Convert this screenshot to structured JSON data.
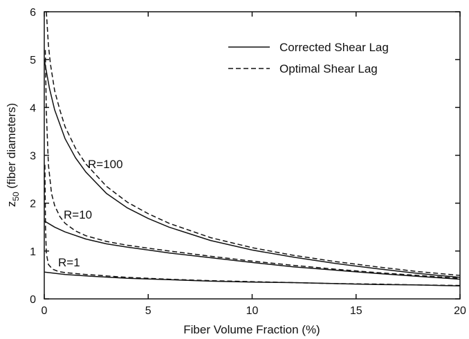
{
  "chart_data": {
    "type": "line",
    "xlabel": "Fiber Volume Fraction (%)",
    "ylabel_main": "z",
    "ylabel_sub": "50",
    "ylabel_rest": " (fiber diameters)",
    "xlim": [
      0,
      20
    ],
    "ylim": [
      0,
      6
    ],
    "xticks": [
      0,
      5,
      10,
      15,
      20
    ],
    "yticks": [
      0,
      1,
      2,
      3,
      4,
      5,
      6
    ],
    "grid": false,
    "legend_position": "top-right",
    "legend": [
      {
        "label": "Corrected Shear Lag",
        "style": "solid"
      },
      {
        "label": "Optimal Shear Lag",
        "style": "dashed"
      }
    ],
    "annotations": [
      "R=100",
      "R=10",
      "R=1"
    ],
    "series": [
      {
        "group": "R=100",
        "style": "solid",
        "x": [
          0,
          0.25,
          0.5,
          1,
          1.5,
          2,
          3,
          4,
          5,
          6,
          8,
          10,
          12,
          14,
          16,
          18,
          20
        ],
        "y": [
          5.0,
          4.4,
          3.95,
          3.35,
          2.95,
          2.65,
          2.2,
          1.9,
          1.68,
          1.5,
          1.22,
          1.02,
          0.87,
          0.74,
          0.63,
          0.53,
          0.45
        ]
      },
      {
        "group": "R=100",
        "style": "dashed",
        "x": [
          0.1,
          0.2,
          0.3,
          0.5,
          0.75,
          1,
          1.5,
          2,
          3,
          4,
          5,
          6,
          8,
          10,
          12,
          14,
          16,
          18,
          20
        ],
        "y": [
          6.0,
          5.3,
          4.9,
          4.35,
          3.95,
          3.6,
          3.15,
          2.82,
          2.35,
          2.02,
          1.78,
          1.58,
          1.28,
          1.07,
          0.91,
          0.78,
          0.67,
          0.57,
          0.49
        ]
      },
      {
        "group": "R=10",
        "style": "solid",
        "x": [
          0,
          0.5,
          1,
          2,
          3,
          4,
          5,
          6,
          8,
          10,
          12,
          14,
          16,
          18,
          20
        ],
        "y": [
          1.63,
          1.5,
          1.4,
          1.25,
          1.15,
          1.08,
          1.02,
          0.96,
          0.86,
          0.76,
          0.67,
          0.6,
          0.53,
          0.47,
          0.41
        ]
      },
      {
        "group": "R=10",
        "style": "dashed",
        "x": [
          0.05,
          0.1,
          0.2,
          0.35,
          0.5,
          0.75,
          1,
          1.5,
          2,
          3,
          4,
          5,
          6,
          8,
          10,
          12,
          14,
          16,
          18,
          20
        ],
        "y": [
          5.2,
          3.9,
          2.8,
          2.2,
          1.95,
          1.72,
          1.58,
          1.42,
          1.32,
          1.2,
          1.12,
          1.06,
          1.0,
          0.89,
          0.79,
          0.7,
          0.62,
          0.55,
          0.49,
          0.43
        ]
      },
      {
        "group": "R=1",
        "style": "solid",
        "x": [
          0,
          1,
          2,
          4,
          6,
          8,
          10,
          12,
          14,
          16,
          18,
          20
        ],
        "y": [
          0.56,
          0.51,
          0.48,
          0.43,
          0.4,
          0.37,
          0.35,
          0.34,
          0.32,
          0.3,
          0.29,
          0.27
        ]
      },
      {
        "group": "R=1",
        "style": "dashed",
        "x": [
          0.03,
          0.06,
          0.1,
          0.2,
          0.4,
          0.7,
          1,
          2,
          4,
          6,
          8,
          10,
          12,
          14,
          16,
          18,
          20
        ],
        "y": [
          2.8,
          1.5,
          0.95,
          0.72,
          0.62,
          0.57,
          0.55,
          0.51,
          0.45,
          0.41,
          0.38,
          0.36,
          0.34,
          0.32,
          0.31,
          0.29,
          0.28
        ]
      }
    ]
  }
}
